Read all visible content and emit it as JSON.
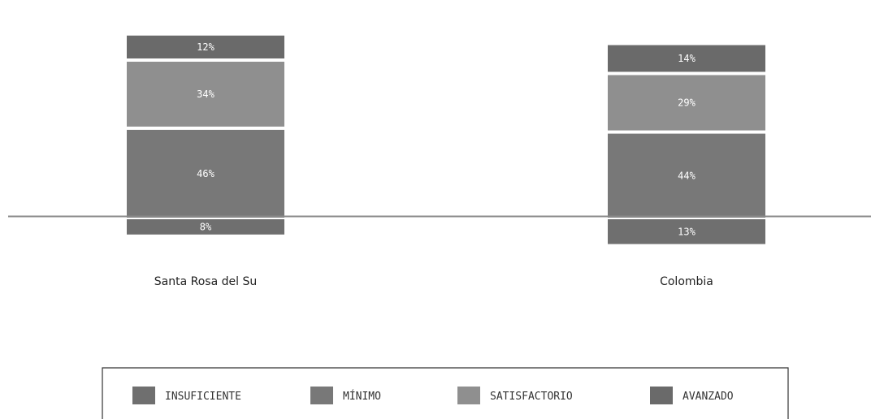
{
  "chart_data": {
    "type": "bar",
    "stacked": "diverging",
    "baseline_series": "MÍNIMO",
    "categories": [
      "Santa Rosa del Su",
      "Colombia"
    ],
    "series": [
      {
        "name": "INSUFICIENTE",
        "values": [
          8,
          13
        ],
        "labels": [
          "8%",
          "13%"
        ],
        "color": "#6f6f6f",
        "direction": "below"
      },
      {
        "name": "MÍNIMO",
        "values": [
          46,
          44
        ],
        "labels": [
          "46%",
          "44%"
        ],
        "color": "#787878",
        "direction": "above"
      },
      {
        "name": "SATISFACTORIO",
        "values": [
          34,
          29
        ],
        "labels": [
          "34%",
          "29%"
        ],
        "color": "#8f8f8f",
        "direction": "above"
      },
      {
        "name": "AVANZADO",
        "values": [
          12,
          14
        ],
        "labels": [
          "12%",
          "14%"
        ],
        "color": "#6a6a6a",
        "direction": "above"
      }
    ],
    "title": "",
    "xlabel": "",
    "ylabel": "",
    "grid": false,
    "legend": {
      "position": "bottom",
      "items": [
        "INSUFICIENTE",
        "MÍNIMO",
        "SATISFACTORIO",
        "AVANZADO"
      ]
    }
  }
}
